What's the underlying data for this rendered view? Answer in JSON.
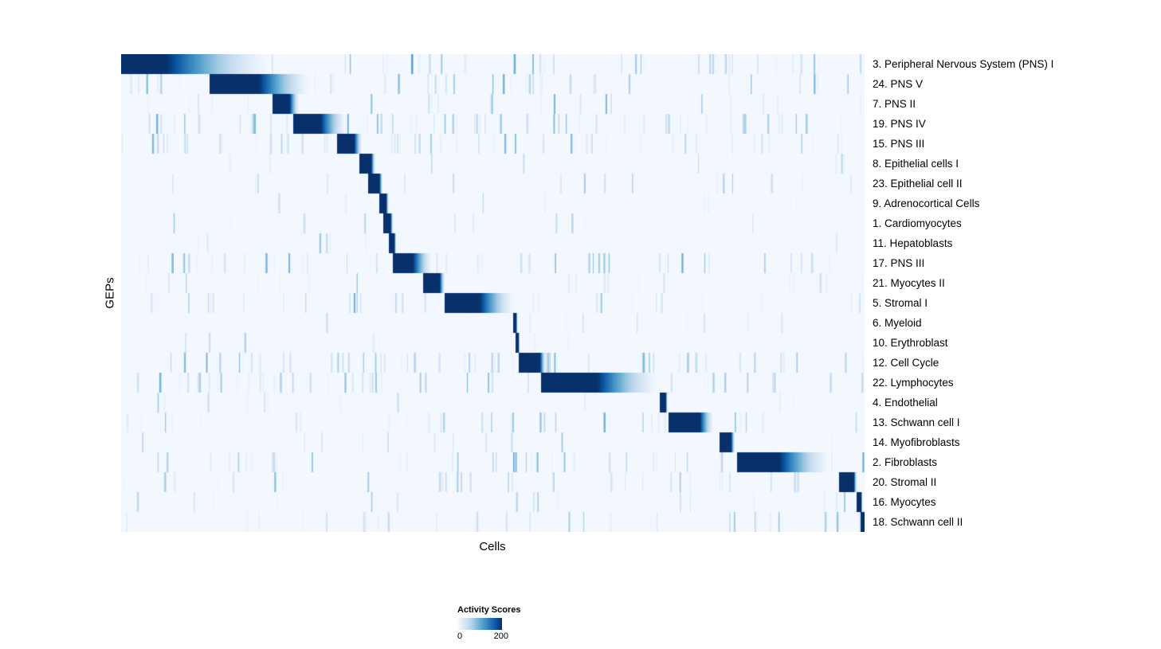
{
  "chart_data": {
    "type": "heatmap",
    "title": "",
    "xlabel": "Cells",
    "ylabel": "GEPs",
    "legend": {
      "title": "Activity Scores",
      "min": 0,
      "max": 200
    },
    "colors": {
      "scale": [
        "#f7fbff",
        "#deebf7",
        "#c6dbef",
        "#9ecae1",
        "#6baed6",
        "#4292c6",
        "#2171b5",
        "#08519c",
        "#08306b"
      ],
      "background": "#ffffff",
      "text": "#000000"
    },
    "description": "Diagonal heatmap of GEP activity scores across cells; each row has a dark-blue activity block (fractions of x-axis width) plus sparse vertical noise stripes.",
    "value_range": [
      0,
      200
    ],
    "rows": [
      {
        "label": "3. Peripheral Nervous System (PNS) I",
        "start": 0.0,
        "core_end": 0.06,
        "fade_end": 0.21,
        "peak": 200,
        "noise_density": 55,
        "noise_intensity": 0.55
      },
      {
        "label": "24. PNS V",
        "start": 0.12,
        "core_end": 0.185,
        "fade_end": 0.26,
        "peak": 200,
        "noise_density": 50,
        "noise_intensity": 0.5
      },
      {
        "label": "7. PNS II",
        "start": 0.204,
        "core_end": 0.226,
        "fade_end": 0.24,
        "peak": 200,
        "noise_density": 35,
        "noise_intensity": 0.45
      },
      {
        "label": "19. PNS IV",
        "start": 0.232,
        "core_end": 0.268,
        "fade_end": 0.305,
        "peak": 200,
        "noise_density": 70,
        "noise_intensity": 0.5
      },
      {
        "label": "15. PNS III",
        "start": 0.291,
        "core_end": 0.313,
        "fade_end": 0.325,
        "peak": 200,
        "noise_density": 70,
        "noise_intensity": 0.45
      },
      {
        "label": "8. Epithelial cells I",
        "start": 0.321,
        "core_end": 0.336,
        "fade_end": 0.342,
        "peak": 200,
        "noise_density": 15,
        "noise_intensity": 0.4
      },
      {
        "label": "23. Epithelial cell II",
        "start": 0.333,
        "core_end": 0.347,
        "fade_end": 0.352,
        "peak": 200,
        "noise_density": 18,
        "noise_intensity": 0.4
      },
      {
        "label": "9. Adrenocortical Cells",
        "start": 0.348,
        "core_end": 0.356,
        "fade_end": 0.36,
        "peak": 200,
        "noise_density": 12,
        "noise_intensity": 0.35
      },
      {
        "label": "1. Cardiomyocytes",
        "start": 0.353,
        "core_end": 0.362,
        "fade_end": 0.366,
        "peak": 200,
        "noise_density": 15,
        "noise_intensity": 0.4
      },
      {
        "label": "11. Hepatoblasts",
        "start": 0.361,
        "core_end": 0.367,
        "fade_end": 0.37,
        "peak": 200,
        "noise_density": 10,
        "noise_intensity": 0.35
      },
      {
        "label": "17. PNS III",
        "start": 0.366,
        "core_end": 0.392,
        "fade_end": 0.42,
        "peak": 200,
        "noise_density": 55,
        "noise_intensity": 0.5
      },
      {
        "label": "21. Myocytes II",
        "start": 0.407,
        "core_end": 0.428,
        "fade_end": 0.436,
        "peak": 200,
        "noise_density": 25,
        "noise_intensity": 0.4
      },
      {
        "label": "5. Stromal I",
        "start": 0.436,
        "core_end": 0.482,
        "fade_end": 0.532,
        "peak": 200,
        "noise_density": 40,
        "noise_intensity": 0.45
      },
      {
        "label": "6. Myeloid",
        "start": 0.528,
        "core_end": 0.531,
        "fade_end": 0.533,
        "peak": 200,
        "noise_density": 12,
        "noise_intensity": 0.35
      },
      {
        "label": "10. Erythroblast",
        "start": 0.531,
        "core_end": 0.534,
        "fade_end": 0.536,
        "peak": 200,
        "noise_density": 10,
        "noise_intensity": 0.3
      },
      {
        "label": "12. Cell Cycle",
        "start": 0.535,
        "core_end": 0.563,
        "fade_end": 0.572,
        "peak": 200,
        "noise_density": 70,
        "noise_intensity": 0.5
      },
      {
        "label": "22. Lymphocytes",
        "start": 0.565,
        "core_end": 0.64,
        "fade_end": 0.728,
        "peak": 200,
        "noise_density": 70,
        "noise_intensity": 0.5
      },
      {
        "label": "4. Endothelial",
        "start": 0.725,
        "core_end": 0.732,
        "fade_end": 0.735,
        "peak": 200,
        "noise_density": 15,
        "noise_intensity": 0.35
      },
      {
        "label": "13. Schwann cell I",
        "start": 0.737,
        "core_end": 0.778,
        "fade_end": 0.798,
        "peak": 200,
        "noise_density": 40,
        "noise_intensity": 0.45
      },
      {
        "label": "14. Myofibroblasts",
        "start": 0.806,
        "core_end": 0.82,
        "fade_end": 0.826,
        "peak": 200,
        "noise_density": 18,
        "noise_intensity": 0.35
      },
      {
        "label": "2. Fibroblasts",
        "start": 0.829,
        "core_end": 0.885,
        "fade_end": 0.958,
        "peak": 200,
        "noise_density": 50,
        "noise_intensity": 0.5
      },
      {
        "label": "20. Stromal II",
        "start": 0.966,
        "core_end": 0.985,
        "fade_end": 0.99,
        "peak": 200,
        "noise_density": 35,
        "noise_intensity": 0.4
      },
      {
        "label": "16. Myocytes",
        "start": 0.99,
        "core_end": 0.995,
        "fade_end": 0.997,
        "peak": 200,
        "noise_density": 25,
        "noise_intensity": 0.4
      },
      {
        "label": "18. Schwann cell II",
        "start": 0.995,
        "core_end": 1.0,
        "fade_end": 1.0,
        "peak": 200,
        "noise_density": 35,
        "noise_intensity": 0.4
      }
    ]
  }
}
